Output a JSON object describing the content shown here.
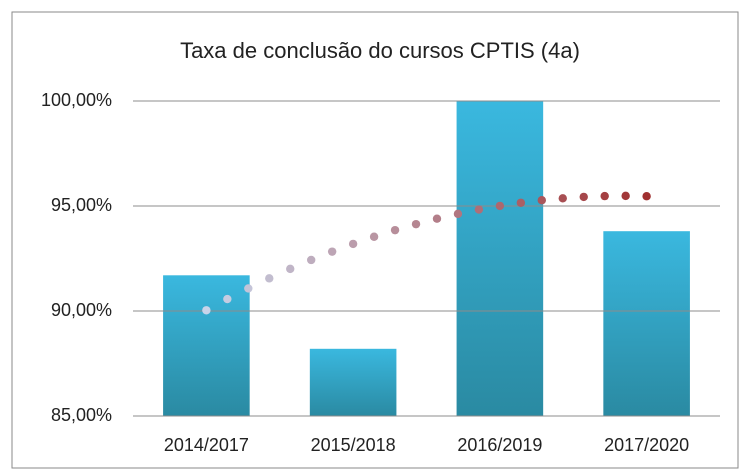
{
  "chart_data": {
    "type": "bar",
    "title": "Taxa de conclusão do cursos CPTIS (4a)",
    "categories": [
      "2014/2017",
      "2015/2018",
      "2016/2019",
      "2017/2020"
    ],
    "values": [
      91.7,
      88.2,
      100,
      93.8
    ],
    "color": "#35b2d8",
    "ylim": [
      85,
      100
    ],
    "yticks": [
      {
        "value": 85,
        "label": "85,00%"
      },
      {
        "value": 90,
        "label": "90,00%"
      },
      {
        "value": 95,
        "label": "95,00%"
      },
      {
        "value": 100,
        "label": "100,00%"
      }
    ],
    "grid": true
  }
}
